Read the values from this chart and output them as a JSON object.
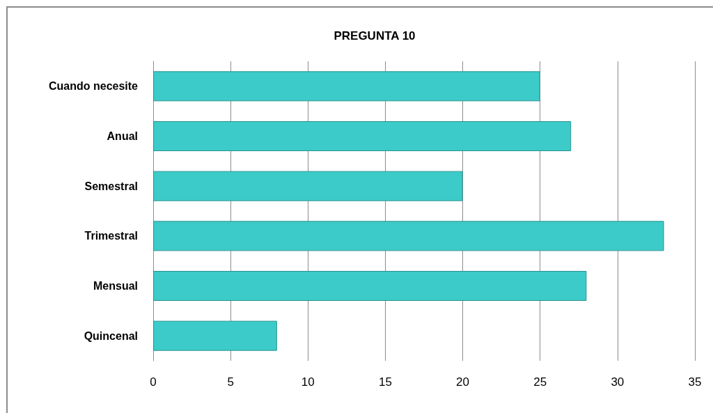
{
  "chart_data": {
    "type": "bar",
    "title": "PREGUNTA 10",
    "orientation": "horizontal",
    "categories": [
      "Cuando necesite",
      "Anual",
      "Semestral",
      "Trimestral",
      "Mensual",
      "Quincenal"
    ],
    "values": [
      25,
      27,
      20,
      33,
      28,
      8
    ],
    "color": "#3ccbc8",
    "xlim": [
      0,
      35
    ],
    "xticks": [
      0,
      5,
      10,
      15,
      20,
      25,
      30,
      35
    ],
    "grid": "x"
  }
}
